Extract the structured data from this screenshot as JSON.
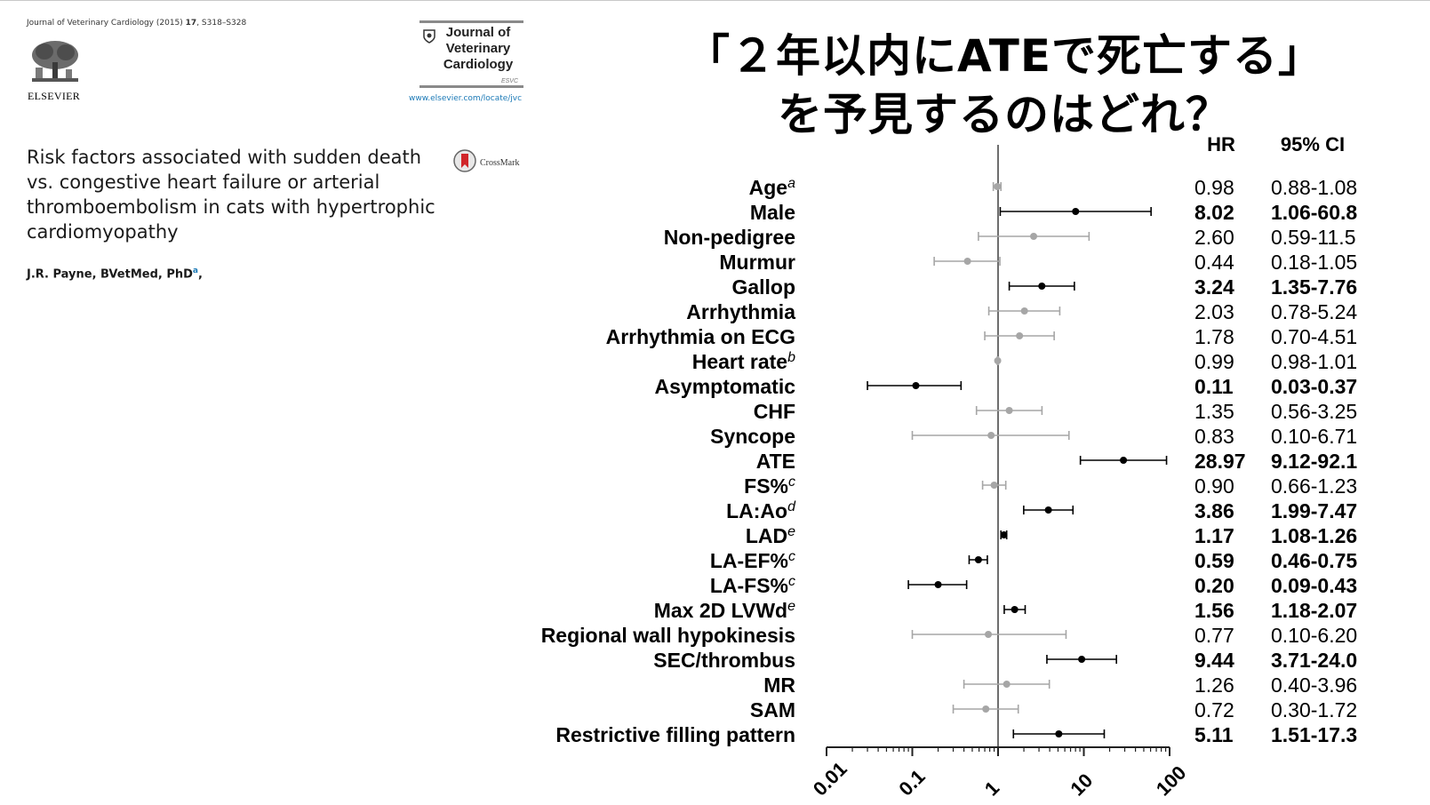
{
  "header": {
    "citation_journal": "Journal of Veterinary Cardiology (2015)",
    "citation_volume": "17",
    "citation_pages": ", S318–S328",
    "publisher": "ELSEVIER",
    "journal_name_line1": "Journal of",
    "journal_name_line2": "Veterinary",
    "journal_name_line3": "Cardiology",
    "journal_tag": "ESVC",
    "journal_url": "www.elsevier.com/locate/jvc"
  },
  "paper": {
    "title": "Risk factors associated with sudden death vs. congestive heart failure or arterial thromboembolism in cats with hypertrophic cardiomyopathy",
    "crossmark": "CrossMark",
    "authors": "J.R. Payne, BVetMed, PhD",
    "author_sup": "a",
    "author_trail": ","
  },
  "question": {
    "line1": "「２年以内にATEで死亡する」",
    "line2": "を予見するのはどれ？"
  },
  "colors": {
    "significant": "#000000",
    "nonsignificant": "#a6a6a6"
  },
  "chart_data": {
    "type": "scatter",
    "subtype": "forest-plot",
    "x_scale": "log",
    "xlim": [
      0.01,
      100
    ],
    "x_ticks": [
      "0.01",
      "0.1",
      "1",
      "10",
      "100"
    ],
    "reference_line": 1,
    "column_headers": {
      "hr": "HR",
      "ci": "95% CI"
    },
    "rows": [
      {
        "label": "Age",
        "sup": "a",
        "hr": 0.98,
        "lo": 0.88,
        "hi": 1.08,
        "hr_text": "0.98",
        "ci_text": "0.88-1.08",
        "significant": false
      },
      {
        "label": "Male",
        "sup": "",
        "hr": 8.02,
        "lo": 1.06,
        "hi": 60.8,
        "hr_text": "8.02",
        "ci_text": "1.06-60.8",
        "significant": true
      },
      {
        "label": "Non-pedigree",
        "sup": "",
        "hr": 2.6,
        "lo": 0.59,
        "hi": 11.5,
        "hr_text": "2.60",
        "ci_text": "0.59-11.5",
        "significant": false
      },
      {
        "label": "Murmur",
        "sup": "",
        "hr": 0.44,
        "lo": 0.18,
        "hi": 1.05,
        "hr_text": "0.44",
        "ci_text": "0.18-1.05",
        "significant": false
      },
      {
        "label": "Gallop",
        "sup": "",
        "hr": 3.24,
        "lo": 1.35,
        "hi": 7.76,
        "hr_text": "3.24",
        "ci_text": "1.35-7.76",
        "significant": true
      },
      {
        "label": "Arrhythmia",
        "sup": "",
        "hr": 2.03,
        "lo": 0.78,
        "hi": 5.24,
        "hr_text": "2.03",
        "ci_text": "0.78-5.24",
        "significant": false
      },
      {
        "label": "Arrhythmia on ECG",
        "sup": "",
        "hr": 1.78,
        "lo": 0.7,
        "hi": 4.51,
        "hr_text": "1.78",
        "ci_text": "0.70-4.51",
        "significant": false
      },
      {
        "label": "Heart rate",
        "sup": "b",
        "hr": 0.99,
        "lo": 0.98,
        "hi": 1.01,
        "hr_text": "0.99",
        "ci_text": "0.98-1.01",
        "significant": false
      },
      {
        "label": "Asymptomatic",
        "sup": "",
        "hr": 0.11,
        "lo": 0.03,
        "hi": 0.37,
        "hr_text": "0.11",
        "ci_text": "0.03-0.37",
        "significant": true
      },
      {
        "label": "CHF",
        "sup": "",
        "hr": 1.35,
        "lo": 0.56,
        "hi": 3.25,
        "hr_text": "1.35",
        "ci_text": "0.56-3.25",
        "significant": false
      },
      {
        "label": "Syncope",
        "sup": "",
        "hr": 0.83,
        "lo": 0.1,
        "hi": 6.71,
        "hr_text": "0.83",
        "ci_text": "0.10-6.71",
        "significant": false
      },
      {
        "label": "ATE",
        "sup": "",
        "hr": 28.97,
        "lo": 9.12,
        "hi": 92.1,
        "hr_text": "28.97",
        "ci_text": "9.12-92.1",
        "significant": true
      },
      {
        "label": "FS%",
        "sup": "c",
        "hr": 0.9,
        "lo": 0.66,
        "hi": 1.23,
        "hr_text": "0.90",
        "ci_text": "0.66-1.23",
        "significant": false
      },
      {
        "label": "LA:Ao",
        "sup": "d",
        "hr": 3.86,
        "lo": 1.99,
        "hi": 7.47,
        "hr_text": "3.86",
        "ci_text": "1.99-7.47",
        "significant": true
      },
      {
        "label": "LAD",
        "sup": "e",
        "hr": 1.17,
        "lo": 1.08,
        "hi": 1.26,
        "hr_text": "1.17",
        "ci_text": "1.08-1.26",
        "significant": true
      },
      {
        "label": "LA-EF%",
        "sup": "c",
        "hr": 0.59,
        "lo": 0.46,
        "hi": 0.75,
        "hr_text": "0.59",
        "ci_text": "0.46-0.75",
        "significant": true
      },
      {
        "label": "LA-FS%",
        "sup": "c",
        "hr": 0.2,
        "lo": 0.09,
        "hi": 0.43,
        "hr_text": "0.20",
        "ci_text": "0.09-0.43",
        "significant": true
      },
      {
        "label": "Max 2D LVWd",
        "sup": "e",
        "hr": 1.56,
        "lo": 1.18,
        "hi": 2.07,
        "hr_text": "1.56",
        "ci_text": "1.18-2.07",
        "significant": true
      },
      {
        "label": "Regional wall hypokinesis",
        "sup": "",
        "hr": 0.77,
        "lo": 0.1,
        "hi": 6.2,
        "hr_text": "0.77",
        "ci_text": "0.10-6.20",
        "significant": false
      },
      {
        "label": "SEC/thrombus",
        "sup": "",
        "hr": 9.44,
        "lo": 3.71,
        "hi": 24.0,
        "hr_text": "9.44",
        "ci_text": "3.71-24.0",
        "significant": true
      },
      {
        "label": "MR",
        "sup": "",
        "hr": 1.26,
        "lo": 0.4,
        "hi": 3.96,
        "hr_text": "1.26",
        "ci_text": "0.40-3.96",
        "significant": false
      },
      {
        "label": "SAM",
        "sup": "",
        "hr": 0.72,
        "lo": 0.3,
        "hi": 1.72,
        "hr_text": "0.72",
        "ci_text": "0.30-1.72",
        "significant": false
      },
      {
        "label": "Restrictive filling pattern",
        "sup": "",
        "hr": 5.11,
        "lo": 1.51,
        "hi": 17.3,
        "hr_text": "5.11",
        "ci_text": "1.51-17.3",
        "significant": true
      }
    ]
  }
}
